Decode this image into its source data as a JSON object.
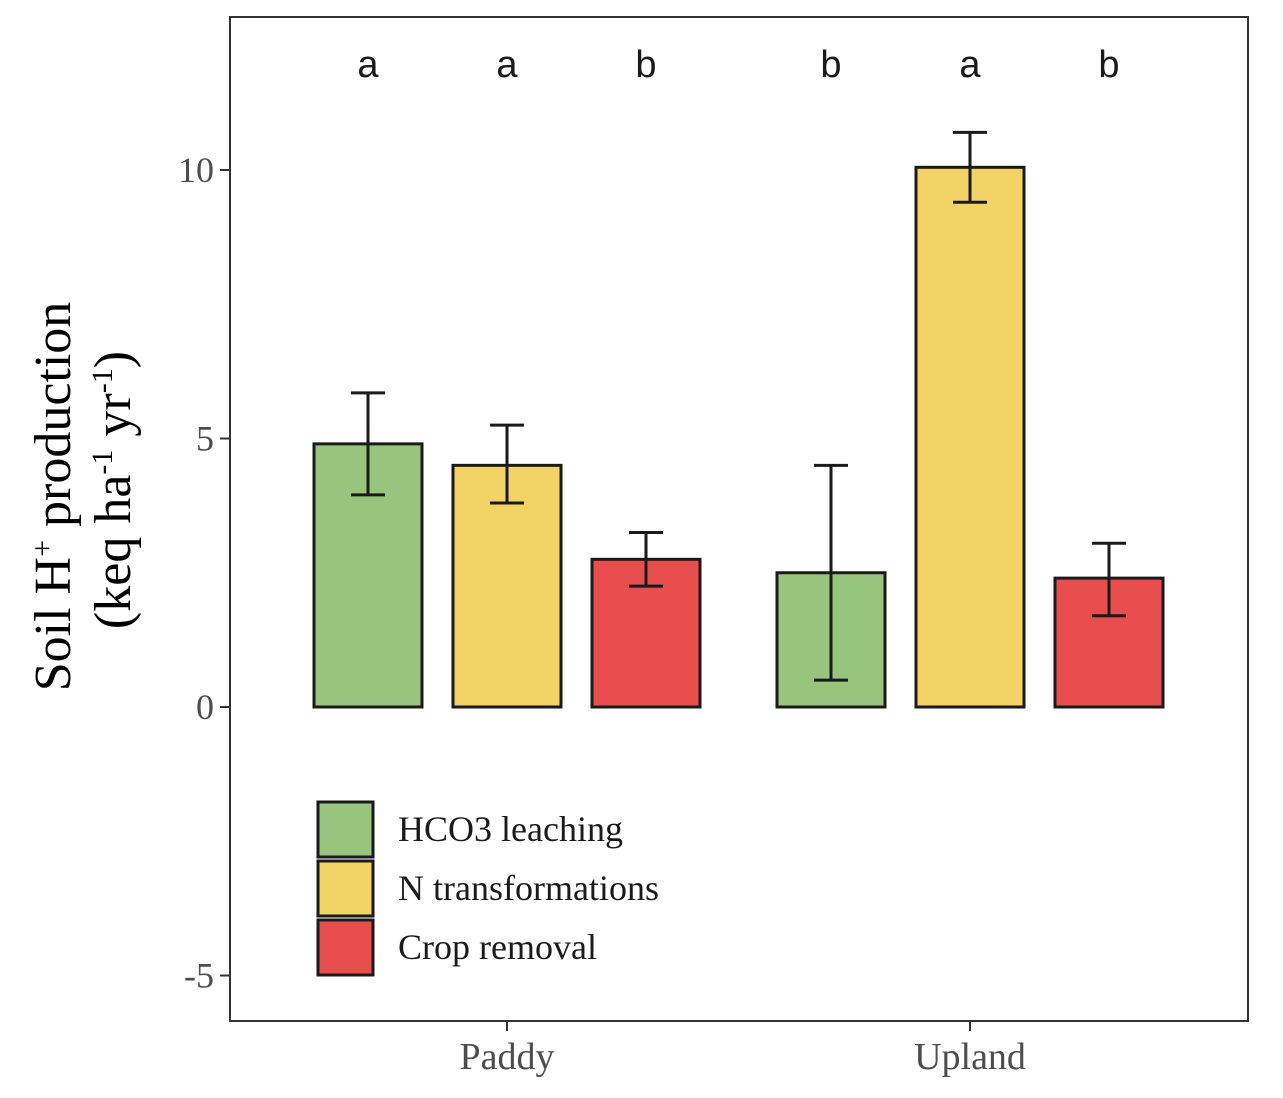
{
  "chart_data": {
    "type": "bar",
    "title": "",
    "xlabel": "",
    "ylabel": {
      "line1": {
        "pre": "Soil H",
        "sup": "+",
        "post": " production"
      },
      "line2": {
        "pre": "(keq ha",
        "sup1": "-1",
        "mid": " yr",
        "sup2": "-1",
        "post": ")"
      }
    },
    "ylim": [
      -5.8,
      12.8
    ],
    "yticks": [
      -5,
      0,
      5,
      10
    ],
    "grid": false,
    "categories": [
      "Paddy",
      "Upland"
    ],
    "series": [
      {
        "name": "HCO3 leaching",
        "color": "#98c57e",
        "values": [
          4.9,
          2.5
        ],
        "error": [
          [
            3.95,
            5.85
          ],
          [
            0.5,
            4.5
          ]
        ],
        "significance": [
          "a",
          "b"
        ]
      },
      {
        "name": "N transformations",
        "color": "#f3d365",
        "values": [
          4.5,
          10.05
        ],
        "error": [
          [
            3.8,
            5.25
          ],
          [
            9.4,
            10.7
          ]
        ],
        "significance": [
          "a",
          "a"
        ]
      },
      {
        "name": "Crop removal",
        "color": "#e84e4e",
        "values": [
          2.75,
          2.4
        ],
        "error": [
          [
            2.25,
            3.25
          ],
          [
            1.7,
            3.05
          ]
        ],
        "significance": [
          "b",
          "b"
        ]
      }
    ],
    "legend_position": "bottom-left"
  }
}
